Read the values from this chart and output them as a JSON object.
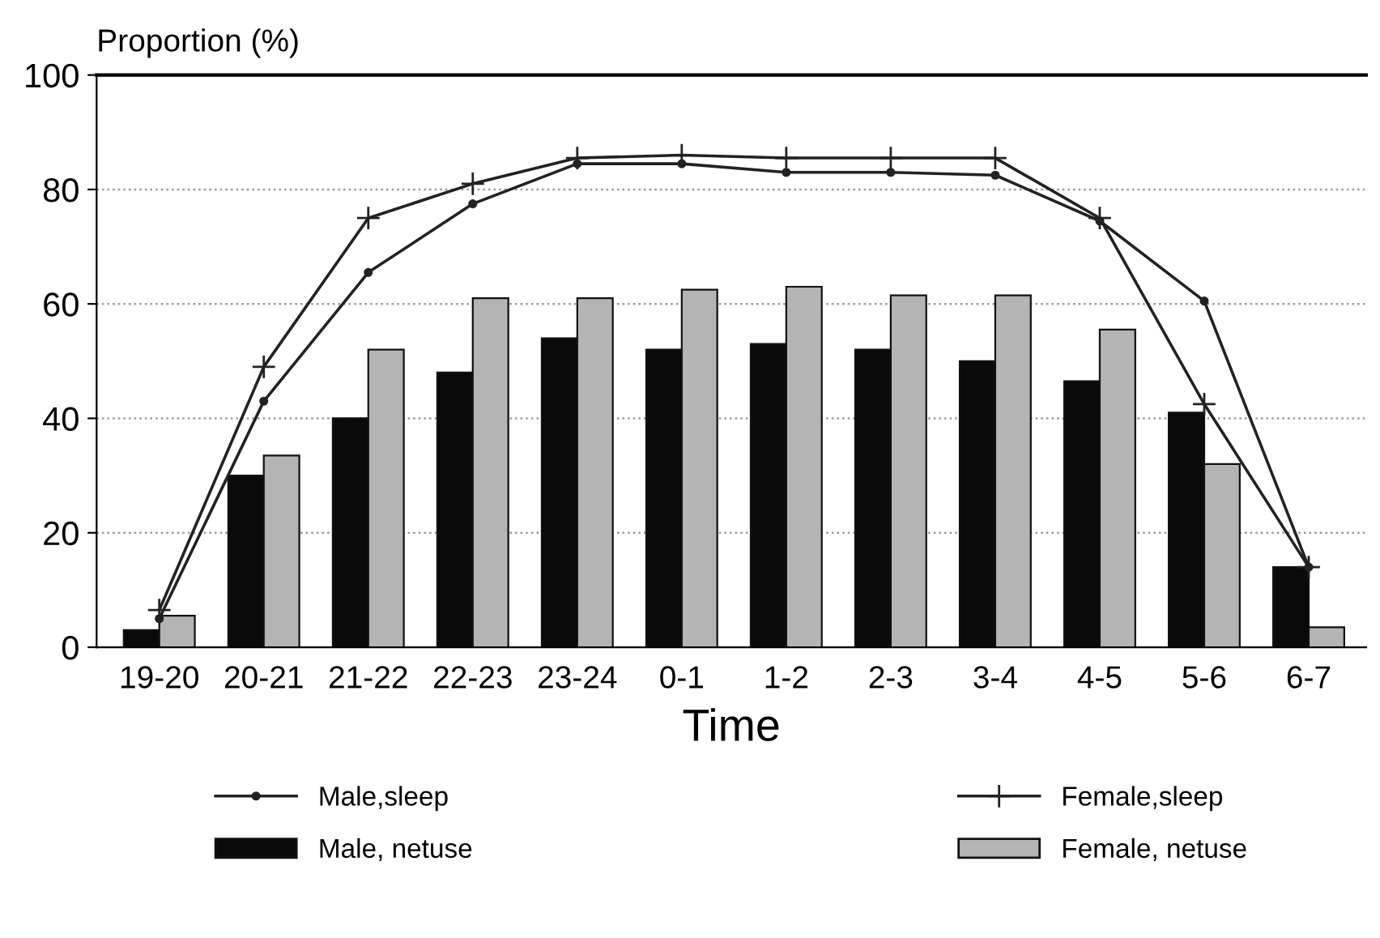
{
  "chart_data": {
    "type": "bar",
    "xlabel": "Time",
    "ylabel": "Proportion (%)",
    "categories": [
      "19-20",
      "20-21",
      "21-22",
      "22-23",
      "23-24",
      "0-1",
      "1-2",
      "2-3",
      "3-4",
      "4-5",
      "5-6",
      "6-7"
    ],
    "series": [
      {
        "name": "Male,sleep",
        "type": "line",
        "color": "#222222",
        "marker": "circle",
        "values": [
          5,
          43,
          65.5,
          77.5,
          84.5,
          84.5,
          83,
          83,
          82.5,
          74.5,
          60.5,
          14
        ]
      },
      {
        "name": "Female,sleep",
        "type": "line",
        "color": "#222222",
        "marker": "cross",
        "values": [
          6.5,
          49,
          75,
          81,
          85.5,
          86,
          85.5,
          85.5,
          85.5,
          75,
          42.5,
          14
        ]
      },
      {
        "name": "Male, netuse",
        "color": "#0a0a0a",
        "values": [
          3,
          30,
          40,
          48,
          54,
          52,
          53,
          52,
          50,
          46.5,
          41,
          14
        ]
      },
      {
        "name": "Female, netuse",
        "color": "#b4b4b4",
        "values": [
          5.5,
          33.5,
          52,
          61,
          61,
          62.5,
          63,
          61.5,
          61.5,
          55.5,
          32,
          3.5
        ]
      }
    ],
    "ylim": [
      0,
      100
    ],
    "yticks": [
      0,
      20,
      40,
      60,
      80,
      100
    ],
    "grid": "y",
    "legend": "bottom"
  }
}
